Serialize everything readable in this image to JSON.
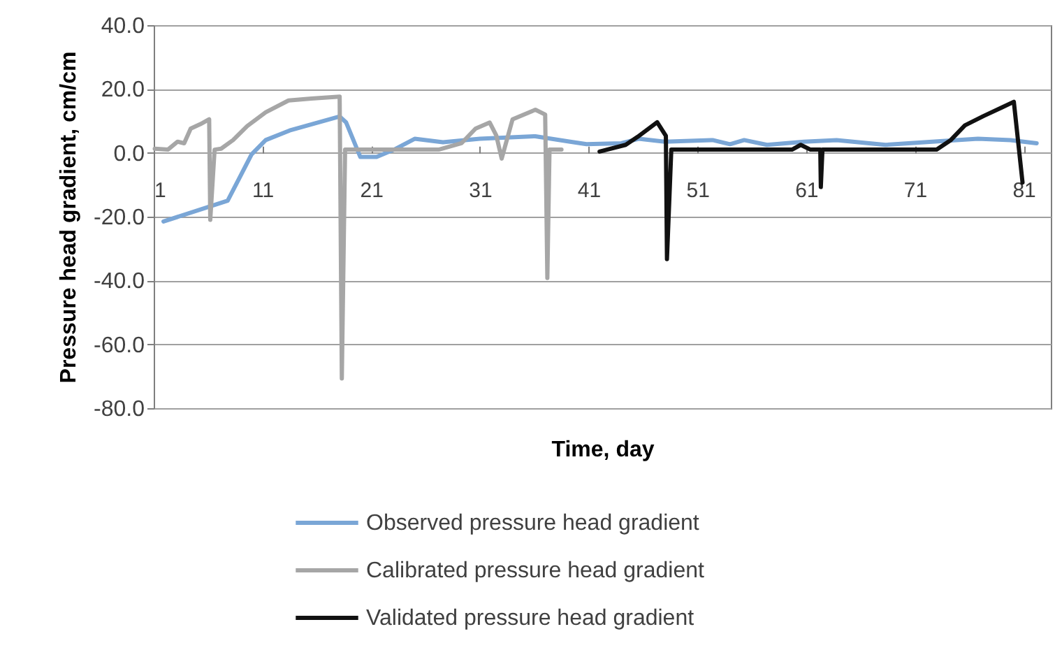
{
  "chart_data": {
    "type": "line",
    "xlabel": "Time, day",
    "ylabel": "Pressure head gradient, cm/cm",
    "xlim": [
      1,
      83.5
    ],
    "xticks": [
      1,
      11,
      21,
      31,
      41,
      51,
      61,
      71,
      81
    ],
    "ylim": [
      -80,
      40
    ],
    "yticks": [
      {
        "value": -80,
        "label": "-80.0"
      },
      {
        "value": -60,
        "label": "-60.0"
      },
      {
        "value": -40,
        "label": "-40.0"
      },
      {
        "value": -20,
        "label": "-20.0"
      },
      {
        "value": 0,
        "label": "0.0"
      },
      {
        "value": 20,
        "label": "20.0"
      },
      {
        "value": 40,
        "label": "40.0"
      }
    ],
    "grid": "y",
    "legend": "bottom",
    "marker": "none",
    "line_style": "solid",
    "series": [
      {
        "name": "Observed pressure head gradient",
        "color": "#7aa6d6",
        "x": [
          1.9,
          7.8,
          10,
          11.3,
          13.5,
          18.1,
          18.7,
          20,
          21.5,
          23.1,
          25,
          27.6,
          31,
          36.1,
          39.3,
          40.8,
          44,
          45.6,
          48,
          52.4,
          54,
          55.3,
          57.4,
          60.8,
          63.8,
          68.3,
          72.6,
          76.8,
          79.8,
          82.2
        ],
        "values": [
          -21.5,
          -15,
          -0.5,
          4,
          7,
          11.4,
          9.5,
          -1.3,
          -1.3,
          1,
          4.4,
          3.3,
          4.4,
          5.2,
          3.5,
          2.7,
          3,
          4.4,
          3.5,
          4,
          2.7,
          4,
          2.5,
          3.5,
          4,
          2.5,
          3.5,
          4.4,
          4,
          3
        ]
      },
      {
        "name": "Calibrated pressure head gradient",
        "color": "#a6a6a6",
        "x": [
          1.1,
          2.3,
          3.2,
          3.8,
          4.4,
          5.3,
          6.1,
          6.2,
          6.6,
          7.2,
          8.3,
          9.6,
          11.3,
          13.4,
          15.5,
          18.1,
          18.3,
          18.6,
          19.9,
          21.2,
          27.2,
          29.3,
          30.6,
          31.9,
          32.5,
          33,
          34,
          36.1,
          37,
          37.2,
          37.4,
          38.5
        ],
        "values": [
          1.3,
          1,
          3.5,
          3,
          7.6,
          9,
          10.5,
          -21,
          1,
          1.3,
          4,
          8.4,
          12.7,
          16.4,
          17,
          17.6,
          -70.7,
          1,
          1,
          1,
          1,
          3,
          7.6,
          9.5,
          5.5,
          -1.8,
          10.5,
          13.5,
          12,
          -39.2,
          1,
          1
        ]
      },
      {
        "name": "Validated pressure head gradient",
        "color": "#111111",
        "x": [
          42,
          44.4,
          45.5,
          47.3,
          48.1,
          48.2,
          48.6,
          59.7,
          60.5,
          61.4,
          62.3,
          62.35,
          62.5,
          73,
          74.3,
          75.6,
          77.3,
          79,
          80.1,
          80.9
        ],
        "values": [
          0.4,
          2.5,
          5,
          9.6,
          5.3,
          -33.3,
          1,
          1,
          2.5,
          1,
          1,
          -10.7,
          1,
          1,
          4,
          8.6,
          11.5,
          14.2,
          16,
          -9.3
        ]
      }
    ]
  }
}
